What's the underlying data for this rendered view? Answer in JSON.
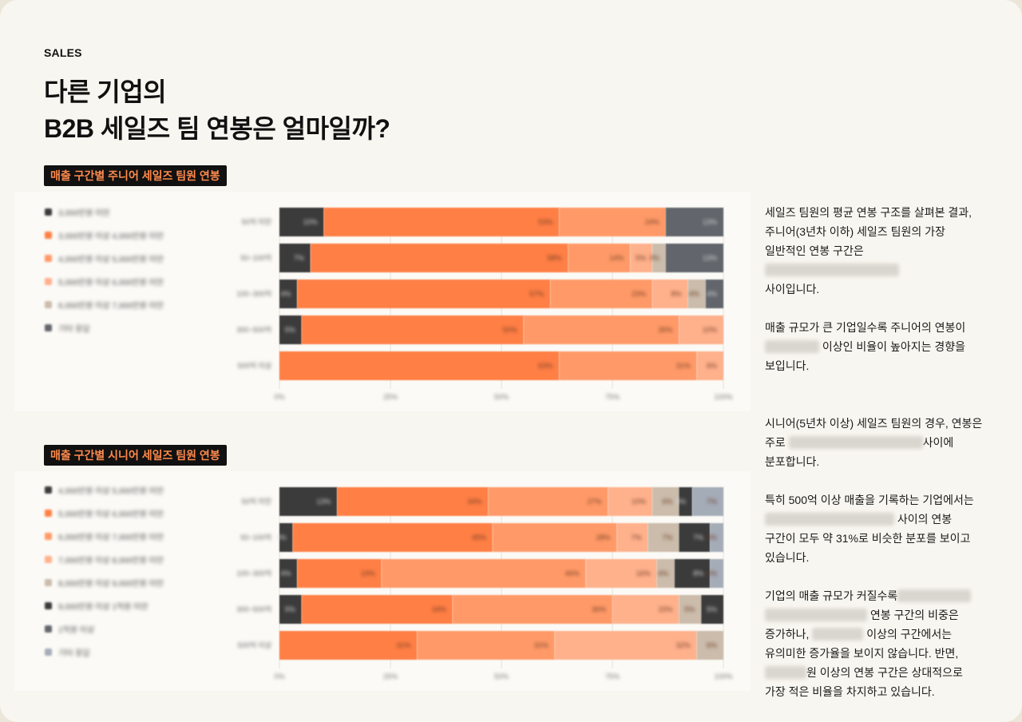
{
  "eyebrow": "SALES",
  "title": {
    "line1": "다른 기업의",
    "line2": "B2B 세일즈 팀 연봉은 얼마일까?"
  },
  "colors": {
    "dark": "#3b3b3b",
    "orange": "#ff7f45",
    "mid": "#ff9a68",
    "light": "#ffb18c",
    "beige": "#cbbcab",
    "gray": "#62666c",
    "bluegray": "#a4acb8",
    "badge_text": "#ff8a4c"
  },
  "chart_data": [
    {
      "type": "bar",
      "orientation": "horizontal-stacked-100",
      "title": "매출 구간별 주니어 세일즈 팀원 연봉",
      "categories": [
        "50억 미만",
        "50~100억",
        "100~300억",
        "300~500억",
        "500억 이상"
      ],
      "xticks": [
        "0%",
        "25%",
        "50%",
        "75%",
        "100%"
      ],
      "xlim": [
        0,
        100
      ],
      "legend_position": "left",
      "series": [
        {
          "name": "3,000만원 미만",
          "color": "#3b3b3b",
          "values": [
            10,
            7,
            4,
            5,
            0
          ]
        },
        {
          "name": "3,000만원 이상 4,000만원 미만",
          "color": "#ff7f45",
          "values": [
            53,
            58,
            57,
            50,
            63
          ]
        },
        {
          "name": "4,000만원 이상 5,000만원 미만",
          "color": "#ff9a68",
          "values": [
            24,
            14,
            23,
            35,
            31
          ]
        },
        {
          "name": "5,000만원 이상 6,000만원 미만",
          "color": "#ffb18c",
          "values": [
            0,
            5,
            8,
            10,
            6
          ]
        },
        {
          "name": "6,000만원 이상 7,000만원 미만",
          "color": "#cbbcab",
          "values": [
            0,
            3,
            4,
            0,
            0
          ]
        },
        {
          "name": "기타 응답",
          "color": "#62666c",
          "values": [
            13,
            13,
            4,
            0,
            0
          ]
        }
      ]
    },
    {
      "type": "bar",
      "orientation": "horizontal-stacked-100",
      "title": "매출 구간별 시니어 세일즈 팀원 연봉",
      "categories": [
        "50억 미만",
        "50~100억",
        "100~300억",
        "300~500억",
        "500억 이상"
      ],
      "xticks": [
        "0%",
        "25%",
        "50%",
        "75%",
        "100%"
      ],
      "xlim": [
        0,
        100
      ],
      "legend_position": "left",
      "series": [
        {
          "name": "4,000만원 이상 5,000만원 미만",
          "color": "#3b3b3b",
          "values": [
            13,
            3,
            4,
            5,
            0
          ]
        },
        {
          "name": "5,000만원 이상 6,000만원 미만",
          "color": "#ff7f45",
          "values": [
            34,
            45,
            19,
            34,
            31
          ]
        },
        {
          "name": "6,000만원 이상 7,000만원 미만",
          "color": "#ff9a68",
          "values": [
            27,
            28,
            46,
            36,
            31
          ]
        },
        {
          "name": "7,000만원 이상 8,000만원 미만",
          "color": "#ffb18c",
          "values": [
            10,
            7,
            16,
            15,
            32
          ]
        },
        {
          "name": "8,000만원 이상 9,000만원 미만",
          "color": "#cbbcab",
          "values": [
            6,
            7,
            4,
            5,
            6
          ]
        },
        {
          "name": "9,000만원 이상 1억원 미만",
          "color": "#3b3b3b",
          "values": [
            3,
            7,
            8,
            5,
            0
          ]
        },
        {
          "name": "1억원 이상",
          "color": "#62666c",
          "values": [
            0,
            0,
            0,
            0,
            0
          ]
        },
        {
          "name": "기타 응답",
          "color": "#a4acb8",
          "values": [
            7,
            3,
            3,
            0,
            0
          ]
        }
      ]
    }
  ],
  "text": {
    "p1a": "세일즈 팀원의 평균 연봉 구조를 살펴본 결과, 주니어(3년차 이하) 세일즈 팀원의 가장 일반적인 연봉 구간은 ",
    "p1b": "사이입니다.",
    "p2a": "매출 규모가 큰 기업일수록 주니어의 연봉이 ",
    "p2b": " 이상인 비율이 높아지는 경향을 보입니다.",
    "p3a": "시니어(5년차 이상) 세일즈 팀원의 경우, 연봉은 주로 ",
    "p3b": "사이에 분포합니다.",
    "p4a": "특히 500억 이상 매출을 기록하는 기업에서는 ",
    "p4b": " 사이의 연봉 구간이 모두 약 31%로 비슷한 분포를 보이고 있습니다.",
    "p5a": "기업의 매출 규모가 커질수록",
    "p5b": " 연봉 구간의 비중은 증가하나, ",
    "p5c": " 이상의 구간에서는 유의미한 증가율을 보이지 않습니다. 반면, ",
    "p5d": "원 이상의 연봉 구간은 상대적으로 가장 적은 비율을 차지하고 있습니다."
  }
}
